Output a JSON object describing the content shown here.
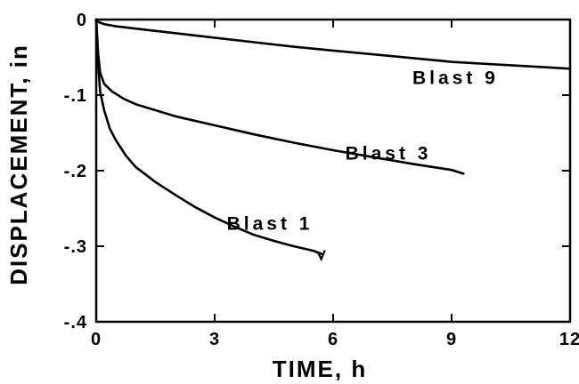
{
  "chart_data": {
    "type": "line",
    "title": "",
    "xlabel": "TIME, h",
    "ylabel": "DISPLACEMENT, in",
    "xlim": [
      0,
      12
    ],
    "ylim": [
      -0.4,
      0
    ],
    "grid": false,
    "x_tick_labels": [
      "0",
      "3",
      "6",
      "9",
      "12"
    ],
    "x_ticks": [
      0,
      3,
      6,
      9,
      12
    ],
    "y_tick_labels": [
      "0",
      "-.1",
      "-.2",
      "-.3",
      "-.4"
    ],
    "y_ticks": [
      0,
      -0.1,
      -0.2,
      -0.3,
      -0.4
    ],
    "series": [
      {
        "name": "Blast 9",
        "x": [
          0,
          0.05,
          0.2,
          0.5,
          1,
          2,
          3,
          4,
          5,
          6,
          7,
          8,
          9,
          10,
          11,
          12
        ],
        "y": [
          0,
          -0.003,
          -0.006,
          -0.009,
          -0.012,
          -0.018,
          -0.024,
          -0.03,
          -0.036,
          -0.041,
          -0.046,
          -0.051,
          -0.056,
          -0.059,
          -0.062,
          -0.065
        ]
      },
      {
        "name": "Blast 3",
        "x": [
          0,
          0.05,
          0.1,
          0.2,
          0.4,
          0.7,
          1,
          1.5,
          2,
          3,
          4,
          5,
          6,
          7,
          8,
          9,
          9.3
        ],
        "y": [
          0,
          -0.045,
          -0.07,
          -0.085,
          -0.095,
          -0.105,
          -0.112,
          -0.12,
          -0.128,
          -0.14,
          -0.152,
          -0.163,
          -0.173,
          -0.182,
          -0.191,
          -0.199,
          -0.204
        ]
      },
      {
        "name": "Blast 1",
        "x": [
          0,
          0.05,
          0.1,
          0.2,
          0.35,
          0.5,
          0.75,
          1,
          1.5,
          2,
          2.5,
          3,
          3.5,
          4,
          4.5,
          5,
          5.5,
          5.7
        ],
        "y": [
          0,
          -0.06,
          -0.095,
          -0.12,
          -0.145,
          -0.16,
          -0.18,
          -0.195,
          -0.215,
          -0.232,
          -0.248,
          -0.262,
          -0.274,
          -0.285,
          -0.293,
          -0.3,
          -0.306,
          -0.31
        ]
      }
    ]
  }
}
